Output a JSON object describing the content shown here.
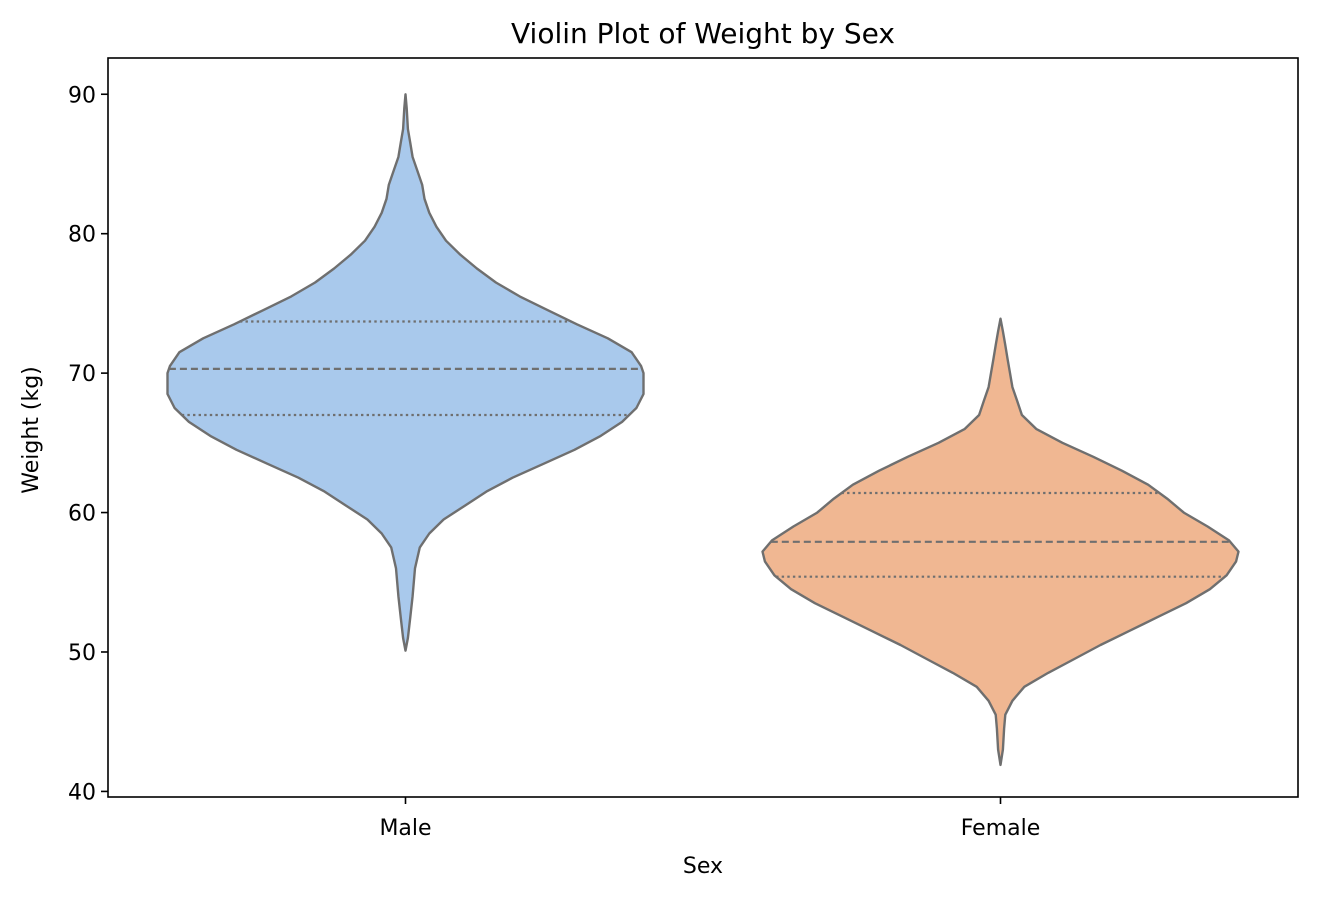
{
  "chart_data": {
    "type": "violin",
    "title": "Violin Plot of Weight by Sex",
    "xlabel": "Sex",
    "ylabel": "Weight (kg)",
    "ylim": [
      39.6,
      92.6
    ],
    "yticks": [
      40,
      50,
      60,
      70,
      80,
      90
    ],
    "categories": [
      "Male",
      "Female"
    ],
    "grid": false,
    "series": [
      {
        "category": "Male",
        "color": "#a9c9ec",
        "min": 50.1,
        "max": 90.0,
        "quartiles": {
          "q1": 67.0,
          "median": 70.3,
          "q3": 73.7
        },
        "density": [
          [
            50.1,
            0.0
          ],
          [
            51.0,
            0.01
          ],
          [
            52.5,
            0.02
          ],
          [
            54.0,
            0.03
          ],
          [
            56.0,
            0.04
          ],
          [
            57.5,
            0.06
          ],
          [
            58.5,
            0.1
          ],
          [
            59.5,
            0.16
          ],
          [
            60.5,
            0.25
          ],
          [
            61.5,
            0.34
          ],
          [
            62.5,
            0.45
          ],
          [
            63.5,
            0.58
          ],
          [
            64.5,
            0.71
          ],
          [
            65.5,
            0.82
          ],
          [
            66.5,
            0.91
          ],
          [
            67.5,
            0.97
          ],
          [
            68.5,
            1.0
          ],
          [
            69.5,
            1.0
          ],
          [
            70.0,
            1.0
          ],
          [
            70.5,
            0.99
          ],
          [
            71.5,
            0.95
          ],
          [
            72.5,
            0.85
          ],
          [
            73.5,
            0.72
          ],
          [
            74.5,
            0.6
          ],
          [
            75.5,
            0.48
          ],
          [
            76.5,
            0.38
          ],
          [
            77.5,
            0.3
          ],
          [
            78.5,
            0.23
          ],
          [
            79.5,
            0.17
          ],
          [
            80.5,
            0.13
          ],
          [
            81.5,
            0.1
          ],
          [
            82.5,
            0.08
          ],
          [
            83.5,
            0.07
          ],
          [
            84.5,
            0.05
          ],
          [
            85.5,
            0.03
          ],
          [
            86.5,
            0.02
          ],
          [
            87.5,
            0.01
          ],
          [
            89.0,
            0.005
          ],
          [
            90.0,
            0.0
          ]
        ]
      },
      {
        "category": "Female",
        "color": "#f0b792",
        "min": 41.9,
        "max": 73.9,
        "quartiles": {
          "q1": 55.4,
          "median": 57.9,
          "q3": 61.4
        },
        "density": [
          [
            41.9,
            0.0
          ],
          [
            43.0,
            0.01
          ],
          [
            44.5,
            0.015
          ],
          [
            45.5,
            0.02
          ],
          [
            46.5,
            0.05
          ],
          [
            47.5,
            0.1
          ],
          [
            48.5,
            0.2
          ],
          [
            49.5,
            0.31
          ],
          [
            50.5,
            0.42
          ],
          [
            51.5,
            0.54
          ],
          [
            52.5,
            0.66
          ],
          [
            53.5,
            0.78
          ],
          [
            54.5,
            0.88
          ],
          [
            55.5,
            0.95
          ],
          [
            56.5,
            0.99
          ],
          [
            57.2,
            1.0
          ],
          [
            58.0,
            0.96
          ],
          [
            59.0,
            0.87
          ],
          [
            60.0,
            0.77
          ],
          [
            61.0,
            0.7
          ],
          [
            62.0,
            0.62
          ],
          [
            63.0,
            0.51
          ],
          [
            64.0,
            0.39
          ],
          [
            65.0,
            0.26
          ],
          [
            66.0,
            0.15
          ],
          [
            67.0,
            0.09
          ],
          [
            68.0,
            0.07
          ],
          [
            69.0,
            0.05
          ],
          [
            70.0,
            0.04
          ],
          [
            71.0,
            0.03
          ],
          [
            72.0,
            0.02
          ],
          [
            73.0,
            0.01
          ],
          [
            73.9,
            0.0
          ]
        ]
      }
    ]
  }
}
